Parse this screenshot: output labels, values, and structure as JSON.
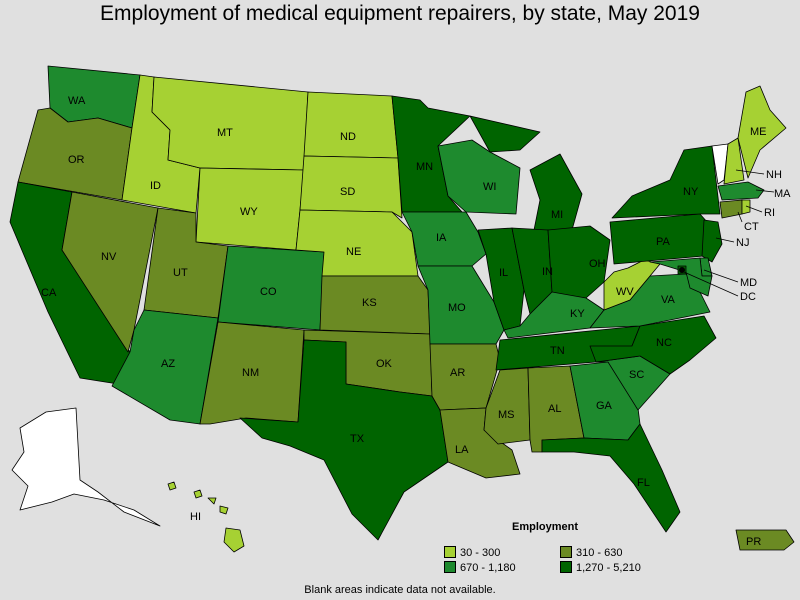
{
  "title": "Employment of medical equipment repairers, by state, May 2019",
  "legend": {
    "title": "Employment",
    "items": [
      {
        "label": "30 - 300",
        "color": "#a6d133"
      },
      {
        "label": "310 - 630",
        "color": "#6b8a23"
      },
      {
        "label": "670 - 1,180",
        "color": "#1e8a2e"
      },
      {
        "label": "1,270 - 5,210",
        "color": "#006400"
      }
    ]
  },
  "no_data_color": "#ffffff",
  "note": "Blank areas indicate data not available.",
  "states": {
    "WA": {
      "label": "WA",
      "class": 2
    },
    "OR": {
      "label": "OR",
      "class": 1
    },
    "CA": {
      "label": "CA",
      "class": 3
    },
    "NV": {
      "label": "NV",
      "class": 1
    },
    "ID": {
      "label": "ID",
      "class": 0
    },
    "MT": {
      "label": "MT",
      "class": 0
    },
    "WY": {
      "label": "WY",
      "class": 0
    },
    "UT": {
      "label": "UT",
      "class": 1
    },
    "AZ": {
      "label": "AZ",
      "class": 2
    },
    "CO": {
      "label": "CO",
      "class": 2
    },
    "NM": {
      "label": "NM",
      "class": 1
    },
    "ND": {
      "label": "ND",
      "class": 0
    },
    "SD": {
      "label": "SD",
      "class": 0
    },
    "NE": {
      "label": "NE",
      "class": 0
    },
    "KS": {
      "label": "KS",
      "class": 1
    },
    "OK": {
      "label": "OK",
      "class": 1
    },
    "TX": {
      "label": "TX",
      "class": 3
    },
    "MN": {
      "label": "MN",
      "class": 3
    },
    "IA": {
      "label": "IA",
      "class": 2
    },
    "MO": {
      "label": "MO",
      "class": 2
    },
    "AR": {
      "label": "AR",
      "class": 1
    },
    "LA": {
      "label": "LA",
      "class": 1
    },
    "WI": {
      "label": "WI",
      "class": 2
    },
    "IL": {
      "label": "IL",
      "class": 3
    },
    "MI": {
      "label": "MI",
      "class": 3
    },
    "IN": {
      "label": "IN",
      "class": 3
    },
    "OH": {
      "label": "OH",
      "class": 3
    },
    "KY": {
      "label": "KY",
      "class": 2
    },
    "TN": {
      "label": "TN",
      "class": 3
    },
    "MS": {
      "label": "MS",
      "class": 1
    },
    "AL": {
      "label": "AL",
      "class": 1
    },
    "GA": {
      "label": "GA",
      "class": 2
    },
    "FL": {
      "label": "FL",
      "class": 3
    },
    "SC": {
      "label": "SC",
      "class": 2
    },
    "NC": {
      "label": "NC",
      "class": 3
    },
    "VA": {
      "label": "VA",
      "class": 2
    },
    "WV": {
      "label": "WV",
      "class": 0
    },
    "PA": {
      "label": "PA",
      "class": 3
    },
    "NY": {
      "label": "NY",
      "class": 3
    },
    "ME": {
      "label": "ME",
      "class": 0
    },
    "VT": {
      "label": "",
      "class": null
    },
    "NH": {
      "label": "NH",
      "class": 0
    },
    "MA": {
      "label": "MA",
      "class": 2
    },
    "CT": {
      "label": "CT",
      "class": 1
    },
    "RI": {
      "label": "RI",
      "class": 0
    },
    "NJ": {
      "label": "NJ",
      "class": 3
    },
    "MD": {
      "label": "MD",
      "class": 2
    },
    "DE": {
      "label": "",
      "class": 2
    },
    "DC": {
      "label": "DC",
      "class": 3
    },
    "AK": {
      "label": "",
      "class": null
    },
    "HI": {
      "label": "HI",
      "class": 0
    },
    "PR": {
      "label": "PR",
      "class": 1
    }
  }
}
